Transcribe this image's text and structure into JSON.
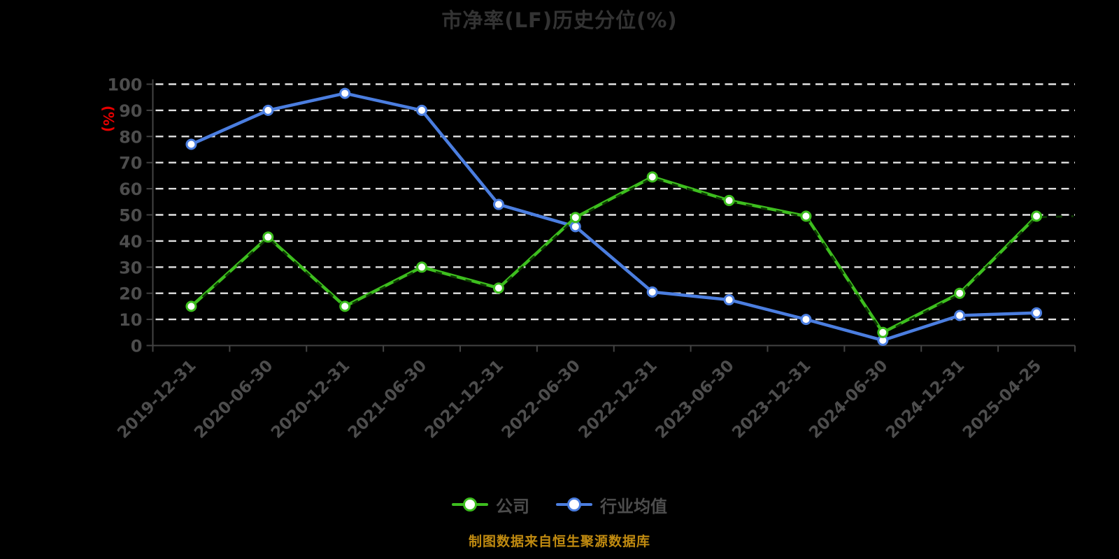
{
  "title": "市净率(LF)历史分位(%)",
  "y_axis_unit": "(%)",
  "caption": "制图数据来自恒生聚源数据库",
  "legend": [
    {
      "label": "公司",
      "color": "#3dbe1e"
    },
    {
      "label": "行业均值",
      "color": "#4b7ee0"
    }
  ],
  "colors": {
    "background": "#000000",
    "title_text": "#333333",
    "axis_line": "#434343",
    "axis_label_text": "#4d4d4d",
    "gridline": "#e2e2e2",
    "y_unit_text": "#e60000",
    "legend_text": "#4d4d4d",
    "caption_text": "#c08a10",
    "company_series": "#3dbe1e",
    "company_dash_overlay": "#0d3a02",
    "industry_series": "#4b7ee0",
    "marker_fill": "#ffffff"
  },
  "chart_data": {
    "type": "line",
    "title": "市净率(LF)历史分位(%)",
    "xlabel": "",
    "ylabel": "(%)",
    "ylim": [
      0,
      100
    ],
    "y_ticks": [
      0,
      10,
      20,
      30,
      40,
      50,
      60,
      70,
      80,
      90,
      100
    ],
    "grid": "horizontal-dashed",
    "legend_position": "bottom",
    "categories": [
      "2019-12-31",
      "2020-06-30",
      "2020-12-31",
      "2021-06-30",
      "2021-12-31",
      "2022-06-30",
      "2022-12-31",
      "2023-06-30",
      "2023-12-31",
      "2024-06-30",
      "2024-12-31",
      "2025-04-25"
    ],
    "series": [
      {
        "name": "公司",
        "color": "#3dbe1e",
        "values": [
          15,
          41.5,
          15,
          30,
          22,
          49,
          64.5,
          55.5,
          49.5,
          5,
          20,
          49.5
        ]
      },
      {
        "name": "行业均值",
        "color": "#4b7ee0",
        "values": [
          77,
          90,
          96.5,
          90,
          54,
          45.5,
          20.5,
          17.5,
          10,
          2,
          11.5,
          12.5
        ]
      }
    ]
  }
}
